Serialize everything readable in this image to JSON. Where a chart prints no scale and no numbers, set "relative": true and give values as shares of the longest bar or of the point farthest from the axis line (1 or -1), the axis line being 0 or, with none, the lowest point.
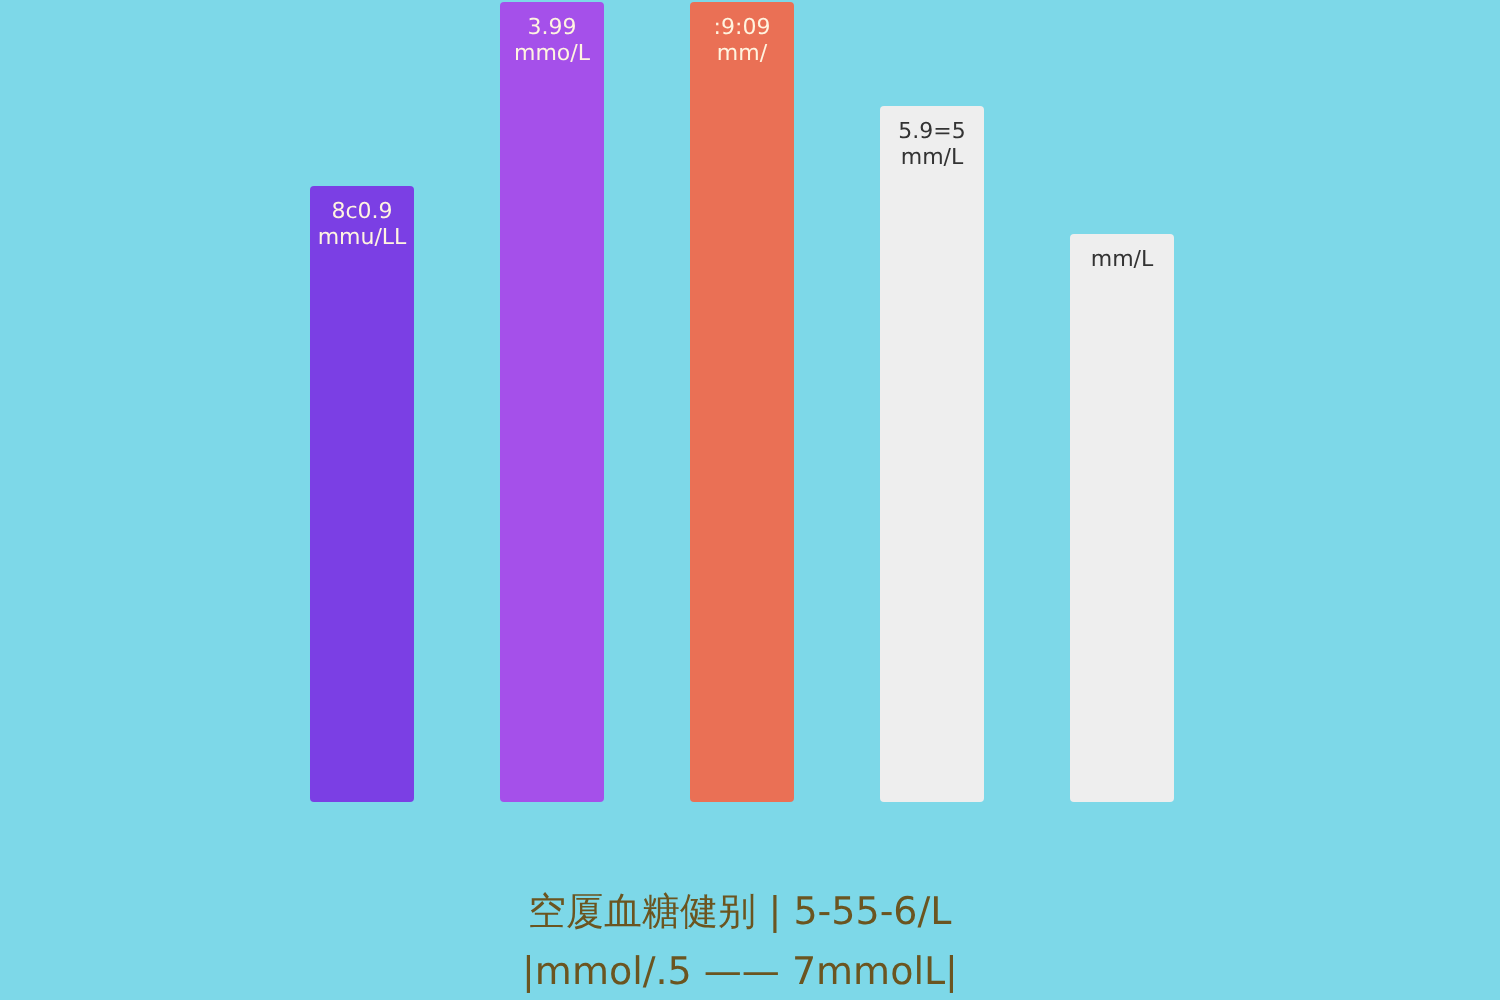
{
  "chart_data": {
    "type": "bar",
    "relative": true,
    "categories": [
      null,
      null,
      null,
      null,
      null
    ],
    "values": [
      0.77,
      1,
      1,
      0.87,
      0.71
    ],
    "colors": [
      "#7b3fe4",
      "#a550ea",
      "#ea7055",
      "#eeeeee",
      "#eeeeee"
    ],
    "annotations": [
      "空厦血糖健别 | 5-55-6/L",
      "|mmol/.5 —— 7mmolL|",
      "8c0.9 mmu/LL",
      "3.99 mmo/L",
      ":9:09 mm/",
      "5.9=5 mm/L",
      "mm/L"
    ]
  }
}
